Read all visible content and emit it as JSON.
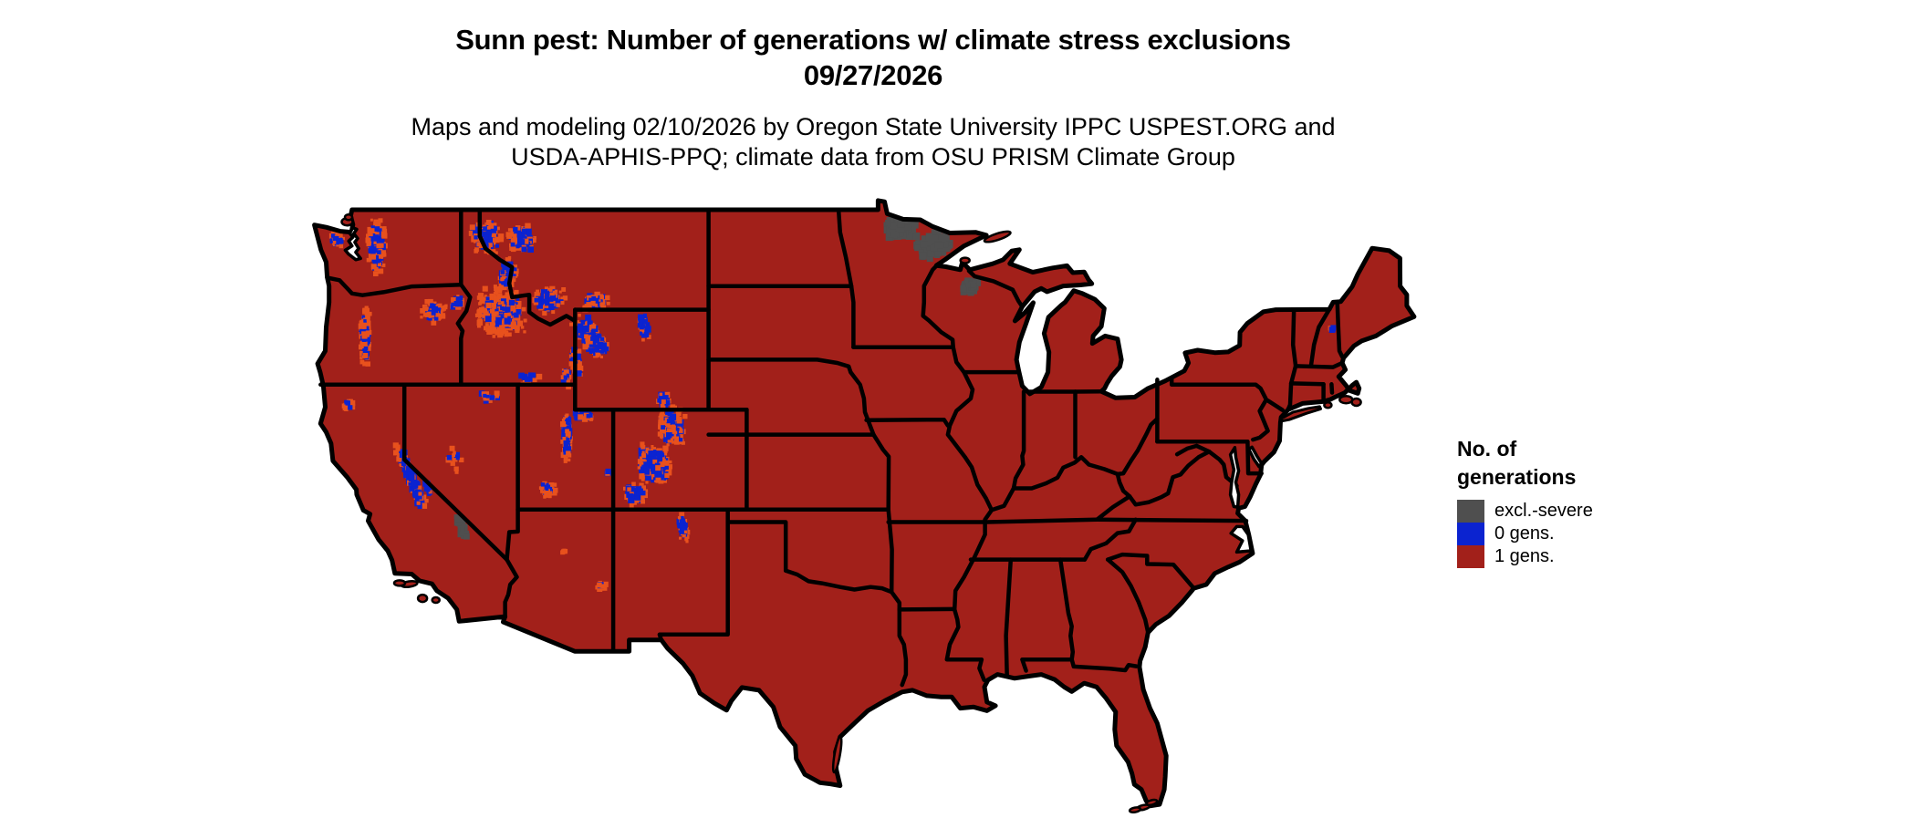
{
  "figure": {
    "title_line1": "Sunn pest: Number of generations w/ climate stress exclusions",
    "title_line2": "09/27/2026",
    "subtitle_line1": "Maps and modeling 02/10/2026 by Oregon State University IPPC USPEST.ORG and",
    "subtitle_line2": "USDA-APHIS-PPQ; climate data from OSU PRISM Climate Group"
  },
  "legend": {
    "title_line1": "No. of",
    "title_line2": "generations",
    "items": [
      {
        "label": "excl.-severe",
        "color": "#4F4F4F"
      },
      {
        "label": "0 gens.",
        "color": "#0B23D0"
      },
      {
        "label": "1 gens.",
        "color": "#A2201A"
      }
    ]
  },
  "map": {
    "colors": {
      "one_generation_fill": "#A2201A",
      "zero_generations_fill": "#0B23D0",
      "excluded_severe_fill": "#4F4F4F",
      "mixed_generation_speckle": "#E8511D",
      "state_border": "#000000",
      "water_background": "#FFFFFF"
    }
  }
}
